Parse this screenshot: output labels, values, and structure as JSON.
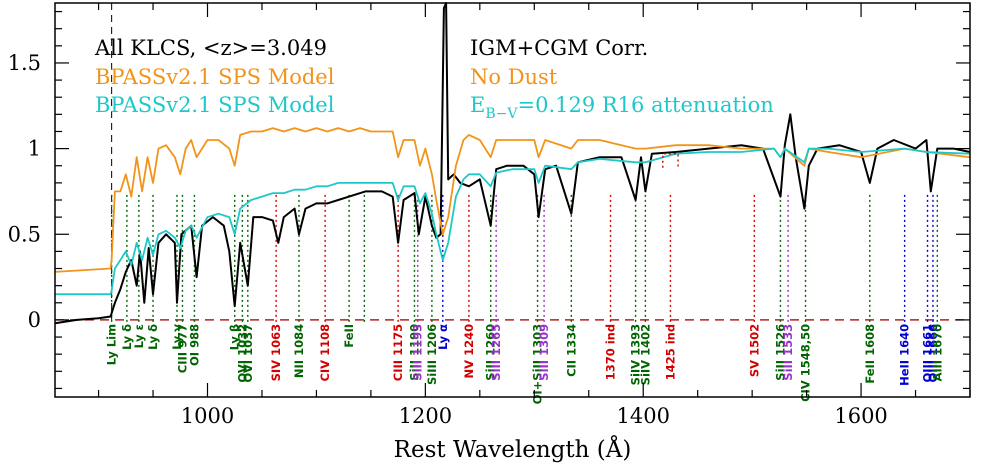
{
  "chart_data": {
    "type": "line",
    "xlabel": "Rest Wavelength (Å)",
    "ylabel": "",
    "xlim": [
      860,
      1700
    ],
    "ylim": [
      -0.45,
      1.85
    ],
    "xticks": [
      1000,
      1200,
      1400,
      1600
    ],
    "yticks": [
      0,
      0.5,
      1,
      1.5
    ],
    "ytick_labels": [
      "0",
      "0.5",
      "1",
      "1.5"
    ],
    "legend_left": [
      {
        "text": "All KLCS, <z>=3.049",
        "color": "#000000"
      },
      {
        "text": "BPASSv2.1 SPS Model",
        "color": "#f29419"
      },
      {
        "text": "BPASSv2.1 SPS Model",
        "color": "#1ec8c8"
      }
    ],
    "legend_right": [
      {
        "text": "IGM+CGM Corr.",
        "color": "#000000"
      },
      {
        "text": "No Dust",
        "color": "#f29419"
      },
      {
        "e": "E",
        "sub": "B−V",
        "rest": "=0.129 R16 attenuation",
        "color": "#1ec8c8"
      }
    ],
    "lyman_limit": 912,
    "zero_line_color": "#b22222",
    "series": [
      {
        "name": "All KLCS, <z>=3.049",
        "color": "#000000",
        "points": [
          [
            860,
            -0.02
          ],
          [
            880,
            0.0
          ],
          [
            900,
            0.01
          ],
          [
            911,
            0.02
          ],
          [
            915,
            0.1
          ],
          [
            920,
            0.18
          ],
          [
            925,
            0.28
          ],
          [
            930,
            0.35
          ],
          [
            935,
            0.2
          ],
          [
            938,
            0.4
          ],
          [
            942,
            0.1
          ],
          [
            946,
            0.42
          ],
          [
            950,
            0.15
          ],
          [
            955,
            0.45
          ],
          [
            962,
            0.5
          ],
          [
            970,
            0.45
          ],
          [
            972,
            0.1
          ],
          [
            976,
            0.5
          ],
          [
            985,
            0.55
          ],
          [
            990,
            0.25
          ],
          [
            995,
            0.55
          ],
          [
            1005,
            0.6
          ],
          [
            1015,
            0.55
          ],
          [
            1020,
            0.4
          ],
          [
            1025,
            0.08
          ],
          [
            1030,
            0.45
          ],
          [
            1037,
            0.2
          ],
          [
            1042,
            0.6
          ],
          [
            1050,
            0.6
          ],
          [
            1060,
            0.58
          ],
          [
            1065,
            0.45
          ],
          [
            1070,
            0.6
          ],
          [
            1080,
            0.65
          ],
          [
            1084,
            0.5
          ],
          [
            1090,
            0.65
          ],
          [
            1100,
            0.68
          ],
          [
            1110,
            0.68
          ],
          [
            1120,
            0.7
          ],
          [
            1130,
            0.72
          ],
          [
            1145,
            0.75
          ],
          [
            1160,
            0.75
          ],
          [
            1170,
            0.72
          ],
          [
            1175,
            0.45
          ],
          [
            1180,
            0.7
          ],
          [
            1190,
            0.74
          ],
          [
            1194,
            0.5
          ],
          [
            1200,
            0.72
          ],
          [
            1206,
            0.55
          ],
          [
            1210,
            0.48
          ],
          [
            1214,
            0.5
          ],
          [
            1217,
            1.82
          ],
          [
            1219,
            1.85
          ],
          [
            1221,
            0.82
          ],
          [
            1226,
            0.85
          ],
          [
            1232,
            0.8
          ],
          [
            1240,
            0.78
          ],
          [
            1250,
            0.82
          ],
          [
            1260,
            0.55
          ],
          [
            1265,
            0.88
          ],
          [
            1275,
            0.9
          ],
          [
            1290,
            0.9
          ],
          [
            1300,
            0.85
          ],
          [
            1304,
            0.6
          ],
          [
            1310,
            0.88
          ],
          [
            1320,
            0.9
          ],
          [
            1334,
            0.62
          ],
          [
            1340,
            0.92
          ],
          [
            1360,
            0.95
          ],
          [
            1380,
            0.95
          ],
          [
            1393,
            0.7
          ],
          [
            1398,
            0.95
          ],
          [
            1402,
            0.75
          ],
          [
            1408,
            0.97
          ],
          [
            1430,
            0.98
          ],
          [
            1460,
            1.0
          ],
          [
            1490,
            1.02
          ],
          [
            1510,
            1.0
          ],
          [
            1526,
            0.72
          ],
          [
            1530,
            1.02
          ],
          [
            1535,
            1.2
          ],
          [
            1540,
            0.95
          ],
          [
            1548,
            0.65
          ],
          [
            1552,
            0.9
          ],
          [
            1560,
            1.0
          ],
          [
            1580,
            1.02
          ],
          [
            1600,
            0.98
          ],
          [
            1608,
            0.8
          ],
          [
            1615,
            1.0
          ],
          [
            1630,
            1.05
          ],
          [
            1650,
            1.0
          ],
          [
            1660,
            1.05
          ],
          [
            1664,
            0.75
          ],
          [
            1670,
            1.0
          ],
          [
            1685,
            1.0
          ],
          [
            1700,
            0.98
          ]
        ]
      },
      {
        "name": "BPASSv2.1 SPS Model",
        "color": "#f29419",
        "points": [
          [
            860,
            0.28
          ],
          [
            911,
            0.3
          ],
          [
            912,
            0.35
          ],
          [
            915,
            0.75
          ],
          [
            920,
            0.75
          ],
          [
            925,
            0.85
          ],
          [
            930,
            0.72
          ],
          [
            935,
            0.95
          ],
          [
            940,
            0.75
          ],
          [
            945,
            0.95
          ],
          [
            950,
            0.8
          ],
          [
            955,
            1.0
          ],
          [
            962,
            1.02
          ],
          [
            970,
            0.95
          ],
          [
            975,
            0.85
          ],
          [
            980,
            1.0
          ],
          [
            985,
            1.05
          ],
          [
            990,
            0.95
          ],
          [
            1000,
            1.05
          ],
          [
            1010,
            1.05
          ],
          [
            1020,
            1.0
          ],
          [
            1025,
            0.9
          ],
          [
            1030,
            1.08
          ],
          [
            1040,
            1.1
          ],
          [
            1050,
            1.1
          ],
          [
            1060,
            1.12
          ],
          [
            1070,
            1.1
          ],
          [
            1080,
            1.12
          ],
          [
            1090,
            1.1
          ],
          [
            1100,
            1.12
          ],
          [
            1110,
            1.1
          ],
          [
            1120,
            1.12
          ],
          [
            1130,
            1.1
          ],
          [
            1140,
            1.12
          ],
          [
            1150,
            1.1
          ],
          [
            1160,
            1.1
          ],
          [
            1170,
            1.1
          ],
          [
            1175,
            0.95
          ],
          [
            1180,
            1.05
          ],
          [
            1190,
            1.05
          ],
          [
            1195,
            0.9
          ],
          [
            1200,
            1.0
          ],
          [
            1206,
            0.85
          ],
          [
            1210,
            0.7
          ],
          [
            1216,
            0.5
          ],
          [
            1221,
            0.6
          ],
          [
            1228,
            0.9
          ],
          [
            1235,
            1.05
          ],
          [
            1240,
            1.08
          ],
          [
            1250,
            1.05
          ],
          [
            1260,
            0.95
          ],
          [
            1265,
            1.05
          ],
          [
            1280,
            1.05
          ],
          [
            1300,
            1.05
          ],
          [
            1304,
            0.95
          ],
          [
            1310,
            1.05
          ],
          [
            1334,
            1.0
          ],
          [
            1340,
            1.05
          ],
          [
            1360,
            1.05
          ],
          [
            1393,
            1.0
          ],
          [
            1402,
            1.0
          ],
          [
            1430,
            1.02
          ],
          [
            1460,
            1.02
          ],
          [
            1490,
            1.0
          ],
          [
            1520,
            1.0
          ],
          [
            1526,
            0.95
          ],
          [
            1530,
            1.0
          ],
          [
            1548,
            0.9
          ],
          [
            1552,
            1.0
          ],
          [
            1570,
            0.98
          ],
          [
            1600,
            0.95
          ],
          [
            1640,
            1.0
          ],
          [
            1660,
            0.98
          ],
          [
            1700,
            0.95
          ]
        ]
      },
      {
        "name": "BPASSv2.1 SPS Model",
        "color": "#1ec8c8",
        "points": [
          [
            860,
            0.15
          ],
          [
            911,
            0.15
          ],
          [
            912,
            0.17
          ],
          [
            915,
            0.3
          ],
          [
            920,
            0.35
          ],
          [
            925,
            0.4
          ],
          [
            930,
            0.32
          ],
          [
            935,
            0.45
          ],
          [
            940,
            0.35
          ],
          [
            945,
            0.48
          ],
          [
            950,
            0.38
          ],
          [
            955,
            0.5
          ],
          [
            962,
            0.52
          ],
          [
            970,
            0.48
          ],
          [
            975,
            0.42
          ],
          [
            980,
            0.52
          ],
          [
            985,
            0.55
          ],
          [
            990,
            0.48
          ],
          [
            1000,
            0.6
          ],
          [
            1010,
            0.62
          ],
          [
            1020,
            0.6
          ],
          [
            1025,
            0.5
          ],
          [
            1030,
            0.65
          ],
          [
            1040,
            0.7
          ],
          [
            1050,
            0.72
          ],
          [
            1060,
            0.74
          ],
          [
            1070,
            0.74
          ],
          [
            1080,
            0.76
          ],
          [
            1090,
            0.76
          ],
          [
            1100,
            0.78
          ],
          [
            1110,
            0.78
          ],
          [
            1120,
            0.8
          ],
          [
            1130,
            0.8
          ],
          [
            1140,
            0.8
          ],
          [
            1150,
            0.8
          ],
          [
            1160,
            0.8
          ],
          [
            1170,
            0.8
          ],
          [
            1175,
            0.7
          ],
          [
            1180,
            0.78
          ],
          [
            1190,
            0.78
          ],
          [
            1195,
            0.68
          ],
          [
            1200,
            0.74
          ],
          [
            1206,
            0.62
          ],
          [
            1210,
            0.5
          ],
          [
            1216,
            0.35
          ],
          [
            1221,
            0.45
          ],
          [
            1228,
            0.72
          ],
          [
            1235,
            0.82
          ],
          [
            1240,
            0.85
          ],
          [
            1250,
            0.85
          ],
          [
            1260,
            0.78
          ],
          [
            1265,
            0.86
          ],
          [
            1280,
            0.88
          ],
          [
            1300,
            0.88
          ],
          [
            1304,
            0.8
          ],
          [
            1310,
            0.9
          ],
          [
            1334,
            0.88
          ],
          [
            1340,
            0.92
          ],
          [
            1360,
            0.94
          ],
          [
            1393,
            0.92
          ],
          [
            1402,
            0.92
          ],
          [
            1430,
            0.97
          ],
          [
            1460,
            0.98
          ],
          [
            1490,
            0.98
          ],
          [
            1520,
            1.0
          ],
          [
            1526,
            0.95
          ],
          [
            1530,
            1.0
          ],
          [
            1548,
            0.92
          ],
          [
            1552,
            1.0
          ],
          [
            1570,
            1.0
          ],
          [
            1600,
            0.98
          ],
          [
            1640,
            1.0
          ],
          [
            1660,
            0.98
          ],
          [
            1700,
            0.97
          ]
        ]
      }
    ],
    "windows": [
      {
        "color": "#d40000",
        "x": [
          1418,
          1432
        ],
        "y": 0.97
      }
    ],
    "annotations": [
      {
        "text": "Ly Lim",
        "x": 912,
        "color": "#006400"
      },
      {
        "text": "Ly δ",
        "x": 926,
        "color": "#006400"
      },
      {
        "text": "Ly ε",
        "x": 937,
        "color": "#006400"
      },
      {
        "text": "Ly δ",
        "x": 950,
        "color": "#006400"
      },
      {
        "text": "Ly γ",
        "x": 972,
        "color": "#006400"
      },
      {
        "text": "CIII 977",
        "x": 977,
        "color": "#006400"
      },
      {
        "text": "OI 988",
        "x": 988,
        "color": "#006400"
      },
      {
        "text": "Ly β",
        "x": 1025,
        "color": "#006400"
      },
      {
        "text": "OVI 1032",
        "x": 1032,
        "color": "#006400"
      },
      {
        "text": "OVI 1037",
        "x": 1037,
        "color": "#006400"
      },
      {
        "text": "SIV 1063",
        "x": 1063,
        "color": "#d40000"
      },
      {
        "text": "NII 1084",
        "x": 1084,
        "color": "#006400"
      },
      {
        "text": "CIV 1108",
        "x": 1108,
        "color": "#d40000"
      },
      {
        "text": "FeII",
        "x": 1130,
        "color": "#006400"
      },
      {
        "text": "",
        "x": 1144,
        "color": "#006400"
      },
      {
        "text": "CIII 1175",
        "x": 1175,
        "color": "#d40000"
      },
      {
        "text": "SiII 1190",
        "x": 1190,
        "color": "#006400"
      },
      {
        "text": "SiII 1193",
        "x": 1193,
        "color": "#9932cc"
      },
      {
        "text": "SiIII 1206",
        "x": 1206,
        "color": "#006400"
      },
      {
        "text": "Ly α",
        "x": 1216,
        "color": "#0000d0"
      },
      {
        "text": "NV 1240",
        "x": 1240,
        "color": "#d40000"
      },
      {
        "text": "SiII 1260",
        "x": 1260,
        "color": "#006400"
      },
      {
        "text": "SiII 1265",
        "x": 1265,
        "color": "#9932cc"
      },
      {
        "text": "OI+SiII 1303",
        "x": 1303,
        "color": "#006400"
      },
      {
        "text": "SiII 1309",
        "x": 1309,
        "color": "#9932cc"
      },
      {
        "text": "CII 1334",
        "x": 1334,
        "color": "#006400"
      },
      {
        "text": "1370 ind",
        "x": 1370,
        "color": "#d40000"
      },
      {
        "text": "SiIV 1393",
        "x": 1393,
        "color": "#006400"
      },
      {
        "text": "SiIV 1402",
        "x": 1402,
        "color": "#006400"
      },
      {
        "text": "1425 ind",
        "x": 1425,
        "color": "#d40000"
      },
      {
        "text": "SV 1502",
        "x": 1502,
        "color": "#d40000"
      },
      {
        "text": "SiII 1526",
        "x": 1526,
        "color": "#006400"
      },
      {
        "text": "SiII 1533",
        "x": 1533,
        "color": "#9932cc"
      },
      {
        "text": "CIV 1548,50",
        "x": 1549,
        "color": "#006400"
      },
      {
        "text": "FeII 1608",
        "x": 1608,
        "color": "#006400"
      },
      {
        "text": "HeII 1640",
        "x": 1640,
        "color": "#0000d0"
      },
      {
        "text": "OIII 1661",
        "x": 1661,
        "color": "#0000d0"
      },
      {
        "text": "OIII 1666",
        "x": 1666,
        "color": "#0000d0"
      },
      {
        "text": "AlII 1670",
        "x": 1670,
        "color": "#006400"
      }
    ]
  }
}
